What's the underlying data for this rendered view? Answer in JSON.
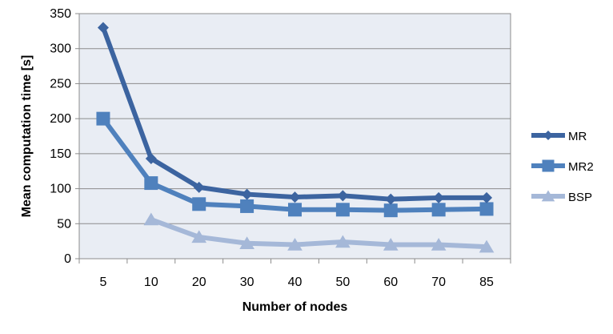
{
  "chart_data": {
    "type": "line",
    "title": "",
    "xlabel": "Number of nodes",
    "ylabel": "Mean computation time [s]",
    "categories": [
      "5",
      "10",
      "20",
      "30",
      "40",
      "50",
      "60",
      "70",
      "85"
    ],
    "ylim": [
      0,
      350
    ],
    "yticks": [
      0,
      50,
      100,
      150,
      200,
      250,
      300,
      350
    ],
    "grid": true,
    "legend_position": "right",
    "plot_background": "#e9edf4",
    "series": [
      {
        "name": "MR",
        "marker": "diamond",
        "color": "#3c64a0",
        "values": [
          330,
          143,
          102,
          92,
          88,
          90,
          85,
          87,
          87
        ]
      },
      {
        "name": "MR2",
        "marker": "square",
        "color": "#4f81bd",
        "values": [
          200,
          108,
          78,
          75,
          70,
          70,
          69,
          70,
          71
        ]
      },
      {
        "name": "BSP",
        "marker": "triangle",
        "color": "#a5b8d8",
        "values": [
          null,
          56,
          31,
          22,
          20,
          24,
          20,
          20,
          17
        ]
      }
    ]
  }
}
